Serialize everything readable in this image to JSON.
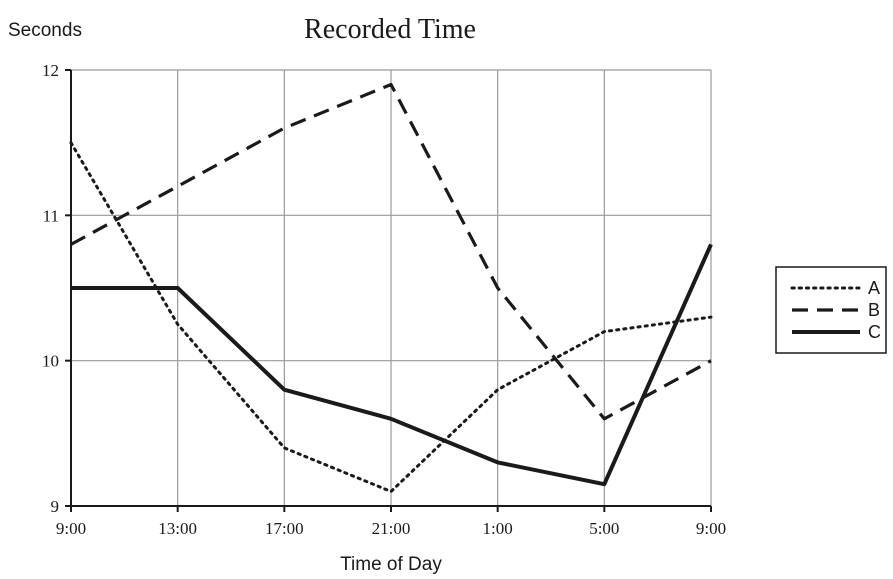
{
  "chart_data": {
    "type": "line",
    "title": "Recorded Time",
    "ylabel": "Seconds",
    "xlabel": "Time of Day",
    "categories": [
      "9:00",
      "13:00",
      "17:00",
      "21:00",
      "1:00",
      "5:00",
      "9:00"
    ],
    "yticks": [
      "9",
      "10",
      "11",
      "12"
    ],
    "ylim": [
      9,
      12
    ],
    "grid": true,
    "legend_position": "right",
    "series": [
      {
        "name": "A",
        "style": "dotted",
        "values": [
          11.5,
          10.25,
          9.4,
          9.1,
          9.8,
          10.2,
          10.3
        ]
      },
      {
        "name": "B",
        "style": "dashed",
        "values": [
          10.8,
          11.2,
          11.6,
          11.9,
          10.5,
          9.6,
          10.0
        ]
      },
      {
        "name": "C",
        "style": "solid",
        "values": [
          10.5,
          10.5,
          9.8,
          9.6,
          9.3,
          9.15,
          10.8
        ]
      }
    ]
  }
}
